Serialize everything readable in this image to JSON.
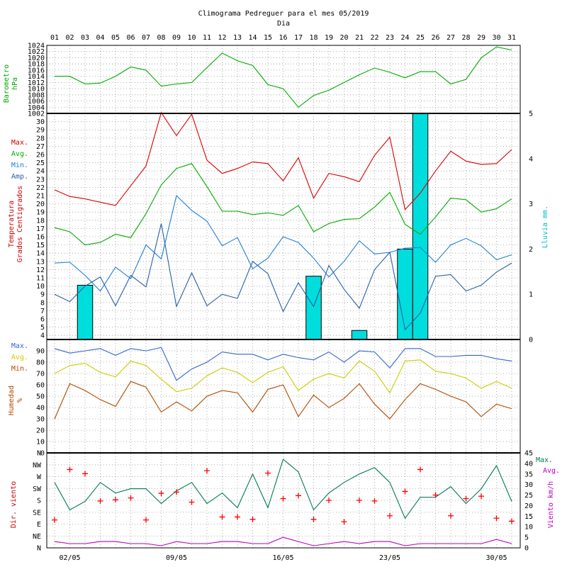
{
  "title": "Climograma Pedreguer para el mes 05/2019",
  "subtitle": "Dia",
  "colors": {
    "pressure": "#00aa00",
    "tmax": "#dd0000",
    "tavg": "#00aa00",
    "tmin": "#1f7fd6",
    "tamp": "#2a5fa6",
    "rain": "#00dddd",
    "hum_max": "#3366cc",
    "hum_avg": "#cccc00",
    "hum_min": "#b04a00",
    "wind_dir": "#ff0000",
    "wind_max": "#007a5a",
    "wind_avg": "#bb00bb",
    "label_red": "#cc0000",
    "label_green": "#00aa00",
    "label_cyan": "#00bbcc"
  },
  "chart_data": [
    {
      "type": "line",
      "title": "Barometro hPa",
      "ylabel_lines": [
        "Barometro",
        "hPa"
      ],
      "x": [
        1,
        2,
        3,
        4,
        5,
        6,
        7,
        8,
        9,
        10,
        11,
        12,
        13,
        14,
        15,
        16,
        17,
        18,
        19,
        20,
        21,
        22,
        23,
        24,
        25,
        26,
        27,
        28,
        29,
        30,
        31
      ],
      "x_ticks": [
        "01",
        "02",
        "03",
        "04",
        "05",
        "06",
        "07",
        "08",
        "09",
        "10",
        "11",
        "12",
        "13",
        "14",
        "15",
        "16",
        "17",
        "18",
        "19",
        "20",
        "21",
        "22",
        "23",
        "24",
        "25",
        "26",
        "27",
        "28",
        "29",
        "30",
        "31"
      ],
      "ylim": [
        1002,
        1024
      ],
      "y_ticks": [
        1002,
        1004,
        1006,
        1008,
        1010,
        1012,
        1014,
        1016,
        1018,
        1020,
        1022,
        1024
      ],
      "series": [
        {
          "name": "Barometro",
          "values": [
            1014,
            1014,
            1011.5,
            1011.8,
            1014,
            1017,
            1016,
            1010.8,
            1011.5,
            1012,
            1016.8,
            1021.5,
            1019,
            1017.5,
            1011.3,
            1010,
            1004,
            1007.8,
            1009.5,
            1012,
            1014.5,
            1016.7,
            1015.3,
            1013.5,
            1015.5,
            1015.5,
            1011.5,
            1013,
            1020,
            1023.5,
            1022.5
          ]
        }
      ]
    },
    {
      "type": "line",
      "title": "Temperatura Grados Centigrados",
      "ylabel_lines": [
        "Temperatura",
        "Grados Centigrados"
      ],
      "legend": [
        "Max.",
        "Avg.",
        "Min.",
        "Amp."
      ],
      "ylim": [
        3.5,
        31
      ],
      "y_ticks": [
        4,
        5,
        6,
        7,
        8,
        9,
        10,
        11,
        12,
        13,
        14,
        15,
        16,
        17,
        18,
        19,
        20,
        21,
        22,
        23,
        24,
        25,
        26,
        27,
        28,
        29,
        30
      ],
      "y2label": "Lluvia mm.",
      "y2lim": [
        0,
        5
      ],
      "y2_ticks": [
        0,
        1,
        2,
        3,
        4,
        5
      ],
      "series": [
        {
          "name": "Max.",
          "values": [
            21.7,
            20.9,
            20.6,
            20.2,
            19.8,
            22.2,
            24.6,
            31.1,
            28.3,
            30.9,
            25.3,
            23.7,
            24.3,
            25.1,
            24.9,
            22.8,
            25.6,
            20.7,
            23.7,
            23.3,
            22.7,
            25.9,
            28.1,
            19.3,
            21.3,
            24,
            26.4,
            25.2,
            24.8,
            24.9,
            26.6
          ]
        },
        {
          "name": "Avg.",
          "values": [
            17.1,
            16.6,
            15,
            15.3,
            16.3,
            15.9,
            18.8,
            22.3,
            24.3,
            24.9,
            22.1,
            19.1,
            19.1,
            18.7,
            18.9,
            18.6,
            19.8,
            16.6,
            17.6,
            18.1,
            18.2,
            19.6,
            21.4,
            17.5,
            16.3,
            18.4,
            20.7,
            20.5,
            19,
            19.4,
            20.6
          ]
        },
        {
          "name": "Min.",
          "values": [
            12.8,
            12.9,
            11.3,
            9.4,
            12.3,
            10.9,
            15,
            13.3,
            21,
            19.2,
            17.9,
            14.9,
            15.9,
            12.1,
            13.4,
            16,
            15.3,
            13.4,
            11.1,
            13,
            15.5,
            13.9,
            14.1,
            14.6,
            14.7,
            12.9,
            15,
            15.8,
            14.9,
            13.2,
            13.8
          ]
        },
        {
          "name": "Amp.",
          "values": [
            9,
            8.1,
            10,
            11.1,
            7.6,
            11.3,
            9.9,
            17.6,
            7.5,
            11.6,
            7.6,
            9,
            8.5,
            13,
            11.5,
            6.9,
            10.4,
            7.5,
            12.5,
            9.6,
            7.3,
            12,
            14.1,
            4.7,
            6.7,
            11.2,
            11.4,
            9.4,
            10.1,
            11.7,
            12.8
          ]
        },
        {
          "name": "Lluvia mm.",
          "type": "bar",
          "values": [
            0,
            0,
            1.2,
            0,
            0,
            0,
            0,
            0,
            0,
            0,
            0,
            0,
            0,
            0,
            0,
            0,
            0,
            1.4,
            0,
            0,
            0.2,
            0,
            0,
            2,
            5,
            0,
            0,
            0,
            0,
            0,
            0
          ]
        }
      ]
    },
    {
      "type": "line",
      "title": "Humedad %",
      "ylabel_lines": [
        "Humedad",
        "%"
      ],
      "legend": [
        "Max.",
        "Avg.",
        "Min."
      ],
      "ylim": [
        0,
        100
      ],
      "y_ticks": [
        0,
        10,
        20,
        30,
        40,
        50,
        60,
        70,
        80,
        90
      ],
      "series": [
        {
          "name": "Max.",
          "values": [
            92,
            88,
            90,
            92,
            86,
            92,
            90,
            93,
            64,
            74,
            80,
            89,
            87,
            87,
            82,
            87,
            84,
            82,
            89,
            80,
            90,
            89,
            75,
            92,
            92,
            85,
            85,
            86,
            86,
            83,
            81
          ]
        },
        {
          "name": "Avg.",
          "values": [
            70,
            77,
            79,
            71,
            67,
            81,
            77,
            65,
            54,
            57,
            68,
            75,
            71,
            62,
            71,
            76,
            55,
            65,
            70,
            66,
            81,
            72,
            53,
            81,
            82,
            72,
            70,
            66,
            57,
            63,
            57
          ]
        },
        {
          "name": "Min.",
          "values": [
            30,
            61,
            55,
            47,
            41,
            63,
            58,
            36,
            45,
            37,
            50,
            55,
            53,
            36,
            56,
            60,
            32,
            51,
            40,
            48,
            61,
            43,
            30,
            47,
            61,
            56,
            50,
            45,
            32,
            43,
            39
          ]
        }
      ]
    },
    {
      "type": "scatter",
      "title": "Dir. viento / Viento km/h",
      "ylabel_lines": [
        "Dir. viento"
      ],
      "y_ticks": [
        "N",
        "NE",
        "E",
        "SE",
        "S",
        "SW",
        "W",
        "NW"
      ],
      "y2label": "Viento km/h",
      "legend": [
        "Max.",
        "Avg."
      ],
      "y2lim": [
        0,
        45
      ],
      "y2_ticks": [
        0,
        5,
        10,
        15,
        20,
        25,
        30,
        35,
        40,
        45
      ],
      "x_date_ticks": [
        "02/05",
        "09/05",
        "16/05",
        "23/05",
        "30/05"
      ],
      "series": [
        {
          "name": "Dir. viento",
          "values": [
            2.35,
            6.6,
            6.25,
            3.95,
            4.05,
            4.2,
            2.35,
            4.6,
            4.7,
            3.85,
            6.5,
            2.6,
            2.6,
            2.4,
            6.3,
            4.15,
            4.4,
            2.4,
            4.0,
            2.2,
            4.0,
            3.95,
            2.7,
            4.75,
            6.6,
            4.45,
            2.7,
            4.15,
            4.35,
            2.5,
            2.25
          ]
        },
        {
          "name": "Max.",
          "values": [
            31,
            18,
            22,
            31,
            26,
            28,
            28,
            21,
            27,
            31,
            21,
            26,
            19,
            35,
            19,
            42,
            36,
            18,
            26,
            31,
            35,
            38,
            31,
            14,
            24,
            24,
            29,
            21,
            28,
            39,
            22
          ]
        },
        {
          "name": "Avg.",
          "values": [
            3,
            2,
            2,
            3,
            3,
            2,
            2,
            1,
            3,
            2,
            2,
            3,
            3,
            2,
            2,
            5,
            3,
            1,
            2,
            3,
            2,
            3,
            3,
            1,
            2,
            2,
            2,
            2,
            2,
            4,
            2
          ]
        }
      ]
    }
  ]
}
